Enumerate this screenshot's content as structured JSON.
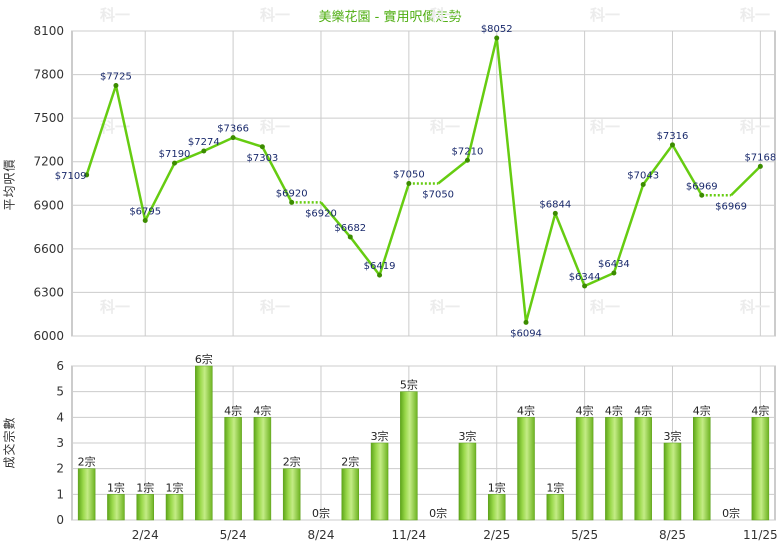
{
  "title": "美樂花園 - 實用呎價走勢",
  "watermark": "科一",
  "chart_data": [
    {
      "type": "line",
      "ylabel": "平均呎價",
      "ylim": [
        6000,
        8100
      ],
      "yticks": [
        6000,
        6300,
        6600,
        6900,
        7200,
        7500,
        7800,
        8100
      ],
      "grid": true,
      "line_color": "#66cc11",
      "points": [
        {
          "idx": 0,
          "value": 7109,
          "label": "$7109",
          "pos": "left"
        },
        {
          "idx": 1,
          "value": 7725,
          "label": "$7725",
          "pos": "above"
        },
        {
          "idx": 2,
          "value": 6795,
          "label": "$6795",
          "pos": "above"
        },
        {
          "idx": 3,
          "value": 7190,
          "label": "$7190",
          "pos": "above"
        },
        {
          "idx": 4,
          "value": 7274,
          "label": "$7274",
          "pos": "above"
        },
        {
          "idx": 5,
          "value": 7366,
          "label": "$7366",
          "pos": "above"
        },
        {
          "idx": 6,
          "value": 7303,
          "label": "$7303",
          "pos": "below"
        },
        {
          "idx": 7,
          "value": 6920,
          "label": "$6920",
          "pos": "above"
        },
        {
          "idx": 8,
          "value": 6920,
          "label": "$6920",
          "pos": "below",
          "interpolated": true
        },
        {
          "idx": 9,
          "value": 6682,
          "label": "$6682",
          "pos": "above"
        },
        {
          "idx": 10,
          "value": 6419,
          "label": "$6419",
          "pos": "above"
        },
        {
          "idx": 11,
          "value": 7050,
          "label": "$7050",
          "pos": "above"
        },
        {
          "idx": 12,
          "value": 7050,
          "label": "$7050",
          "pos": "below",
          "interpolated": true
        },
        {
          "idx": 13,
          "value": 7210,
          "label": "$7210",
          "pos": "above"
        },
        {
          "idx": 14,
          "value": 8052,
          "label": "$8052",
          "pos": "above"
        },
        {
          "idx": 15,
          "value": 6094,
          "label": "$6094",
          "pos": "below"
        },
        {
          "idx": 16,
          "value": 6844,
          "label": "$6844",
          "pos": "above"
        },
        {
          "idx": 17,
          "value": 6344,
          "label": "$6344",
          "pos": "above"
        },
        {
          "idx": 18,
          "value": 6434,
          "label": "$6434",
          "pos": "above"
        },
        {
          "idx": 19,
          "value": 7043,
          "label": "$7043",
          "pos": "above"
        },
        {
          "idx": 20,
          "value": 7316,
          "label": "$7316",
          "pos": "above"
        },
        {
          "idx": 21,
          "value": 6969,
          "label": "$6969",
          "pos": "above"
        },
        {
          "idx": 22,
          "value": 6969,
          "label": "$6969",
          "pos": "below",
          "interpolated": true
        },
        {
          "idx": 23,
          "value": 7168,
          "label": "$7168",
          "pos": "above"
        }
      ]
    },
    {
      "type": "bar",
      "ylabel": "成交宗數",
      "ylim": [
        0,
        6
      ],
      "yticks": [
        0,
        1,
        2,
        3,
        4,
        5,
        6
      ],
      "grid": true,
      "x_tick_labels": [
        {
          "idx": 2,
          "label": "2/24"
        },
        {
          "idx": 5,
          "label": "5/24"
        },
        {
          "idx": 8,
          "label": "8/24"
        },
        {
          "idx": 11,
          "label": "11/24"
        },
        {
          "idx": 14,
          "label": "2/25"
        },
        {
          "idx": 17,
          "label": "5/25"
        },
        {
          "idx": 20,
          "label": "8/25"
        },
        {
          "idx": 23,
          "label": "11/25"
        }
      ],
      "values": [
        2,
        1,
        1,
        1,
        6,
        4,
        4,
        2,
        0,
        2,
        3,
        5,
        0,
        3,
        1,
        4,
        1,
        4,
        4,
        4,
        3,
        4,
        0,
        4
      ],
      "labels": [
        "2宗",
        "1宗",
        "1宗",
        "1宗",
        "6宗",
        "4宗",
        "4宗",
        "2宗",
        "0宗",
        "2宗",
        "3宗",
        "5宗",
        "0宗",
        "3宗",
        "1宗",
        "4宗",
        "1宗",
        "4宗",
        "4宗",
        "4宗",
        "3宗",
        "4宗",
        "0宗",
        "4宗"
      ]
    }
  ]
}
